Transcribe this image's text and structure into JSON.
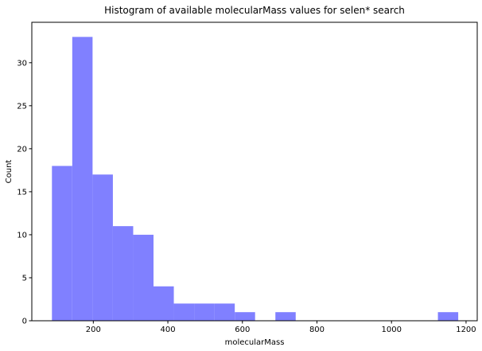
{
  "chart_data": {
    "type": "histogram",
    "title": "Histogram of available molecularMass values for selen* search",
    "xlabel": "molecularMass",
    "ylabel": "Count",
    "xlim": [
      35,
      1230
    ],
    "ylim": [
      0,
      34.7
    ],
    "x_ticks": [
      200,
      400,
      600,
      800,
      1000,
      1200
    ],
    "y_ticks": [
      0,
      5,
      10,
      15,
      20,
      25,
      30
    ],
    "grid": false,
    "bar_color": "#8080ff",
    "bins": [
      {
        "start": 89.0,
        "end": 143.5,
        "count": 18
      },
      {
        "start": 143.5,
        "end": 198.0,
        "count": 33
      },
      {
        "start": 198.0,
        "end": 252.5,
        "count": 17
      },
      {
        "start": 252.5,
        "end": 307.0,
        "count": 11
      },
      {
        "start": 307.0,
        "end": 361.5,
        "count": 10
      },
      {
        "start": 361.5,
        "end": 416.0,
        "count": 4
      },
      {
        "start": 416.0,
        "end": 470.5,
        "count": 2
      },
      {
        "start": 470.5,
        "end": 525.0,
        "count": 2
      },
      {
        "start": 525.0,
        "end": 579.5,
        "count": 2
      },
      {
        "start": 579.5,
        "end": 634.0,
        "count": 1
      },
      {
        "start": 634.0,
        "end": 688.5,
        "count": 0
      },
      {
        "start": 688.5,
        "end": 743.0,
        "count": 1
      },
      {
        "start": 743.0,
        "end": 797.5,
        "count": 0
      },
      {
        "start": 797.5,
        "end": 852.0,
        "count": 0
      },
      {
        "start": 852.0,
        "end": 906.5,
        "count": 0
      },
      {
        "start": 906.5,
        "end": 961.0,
        "count": 0
      },
      {
        "start": 961.0,
        "end": 1015.5,
        "count": 0
      },
      {
        "start": 1015.5,
        "end": 1070.0,
        "count": 0
      },
      {
        "start": 1070.0,
        "end": 1124.5,
        "count": 0
      },
      {
        "start": 1124.5,
        "end": 1179.0,
        "count": 1
      }
    ]
  }
}
